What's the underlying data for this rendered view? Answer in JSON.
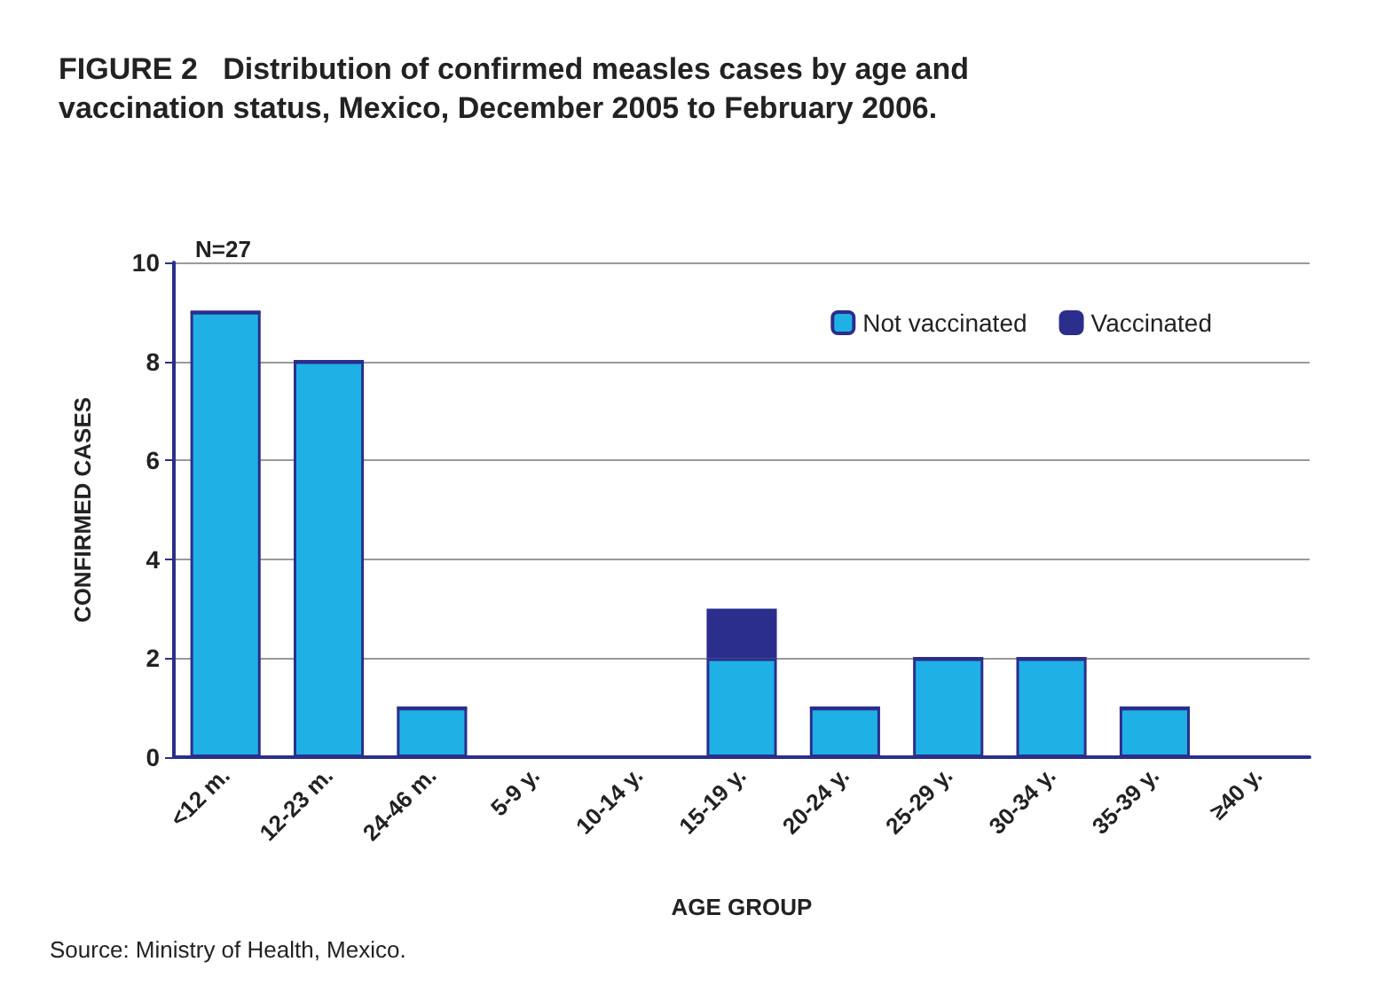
{
  "chart_data": {
    "type": "bar",
    "title": "FIGURE 2   Distribution of confirmed measles cases by age and vaccination status, Mexico, December 2005 to February 2006.",
    "xlabel": "AGE GROUP",
    "ylabel": "CONFIRMED CASES",
    "annotations": [
      "N=27",
      "Source: Ministry of Health, Mexico."
    ],
    "categories": [
      "<12 m.",
      "12-23 m.",
      "24-46 m.",
      "5-9 y.",
      "10-14 y.",
      "15-19 y.",
      "20-24 y.",
      "25-29 y.",
      "30-34 y.",
      "35-39 y.",
      "≥40 y."
    ],
    "stacked": true,
    "series": [
      {
        "name": "Not vaccinated",
        "color": "#1fb1e6",
        "values": [
          9,
          8,
          1,
          0,
          0,
          2,
          1,
          2,
          2,
          1,
          0
        ]
      },
      {
        "name": "Vaccinated",
        "color": "#2b2e8c",
        "values": [
          0,
          0,
          0,
          0,
          0,
          1,
          0,
          0,
          0,
          0,
          0
        ]
      }
    ],
    "ylim": [
      0,
      10
    ],
    "yticks": [
      0,
      2,
      4,
      6,
      8,
      10
    ],
    "grid": "y",
    "legend": "top right"
  }
}
